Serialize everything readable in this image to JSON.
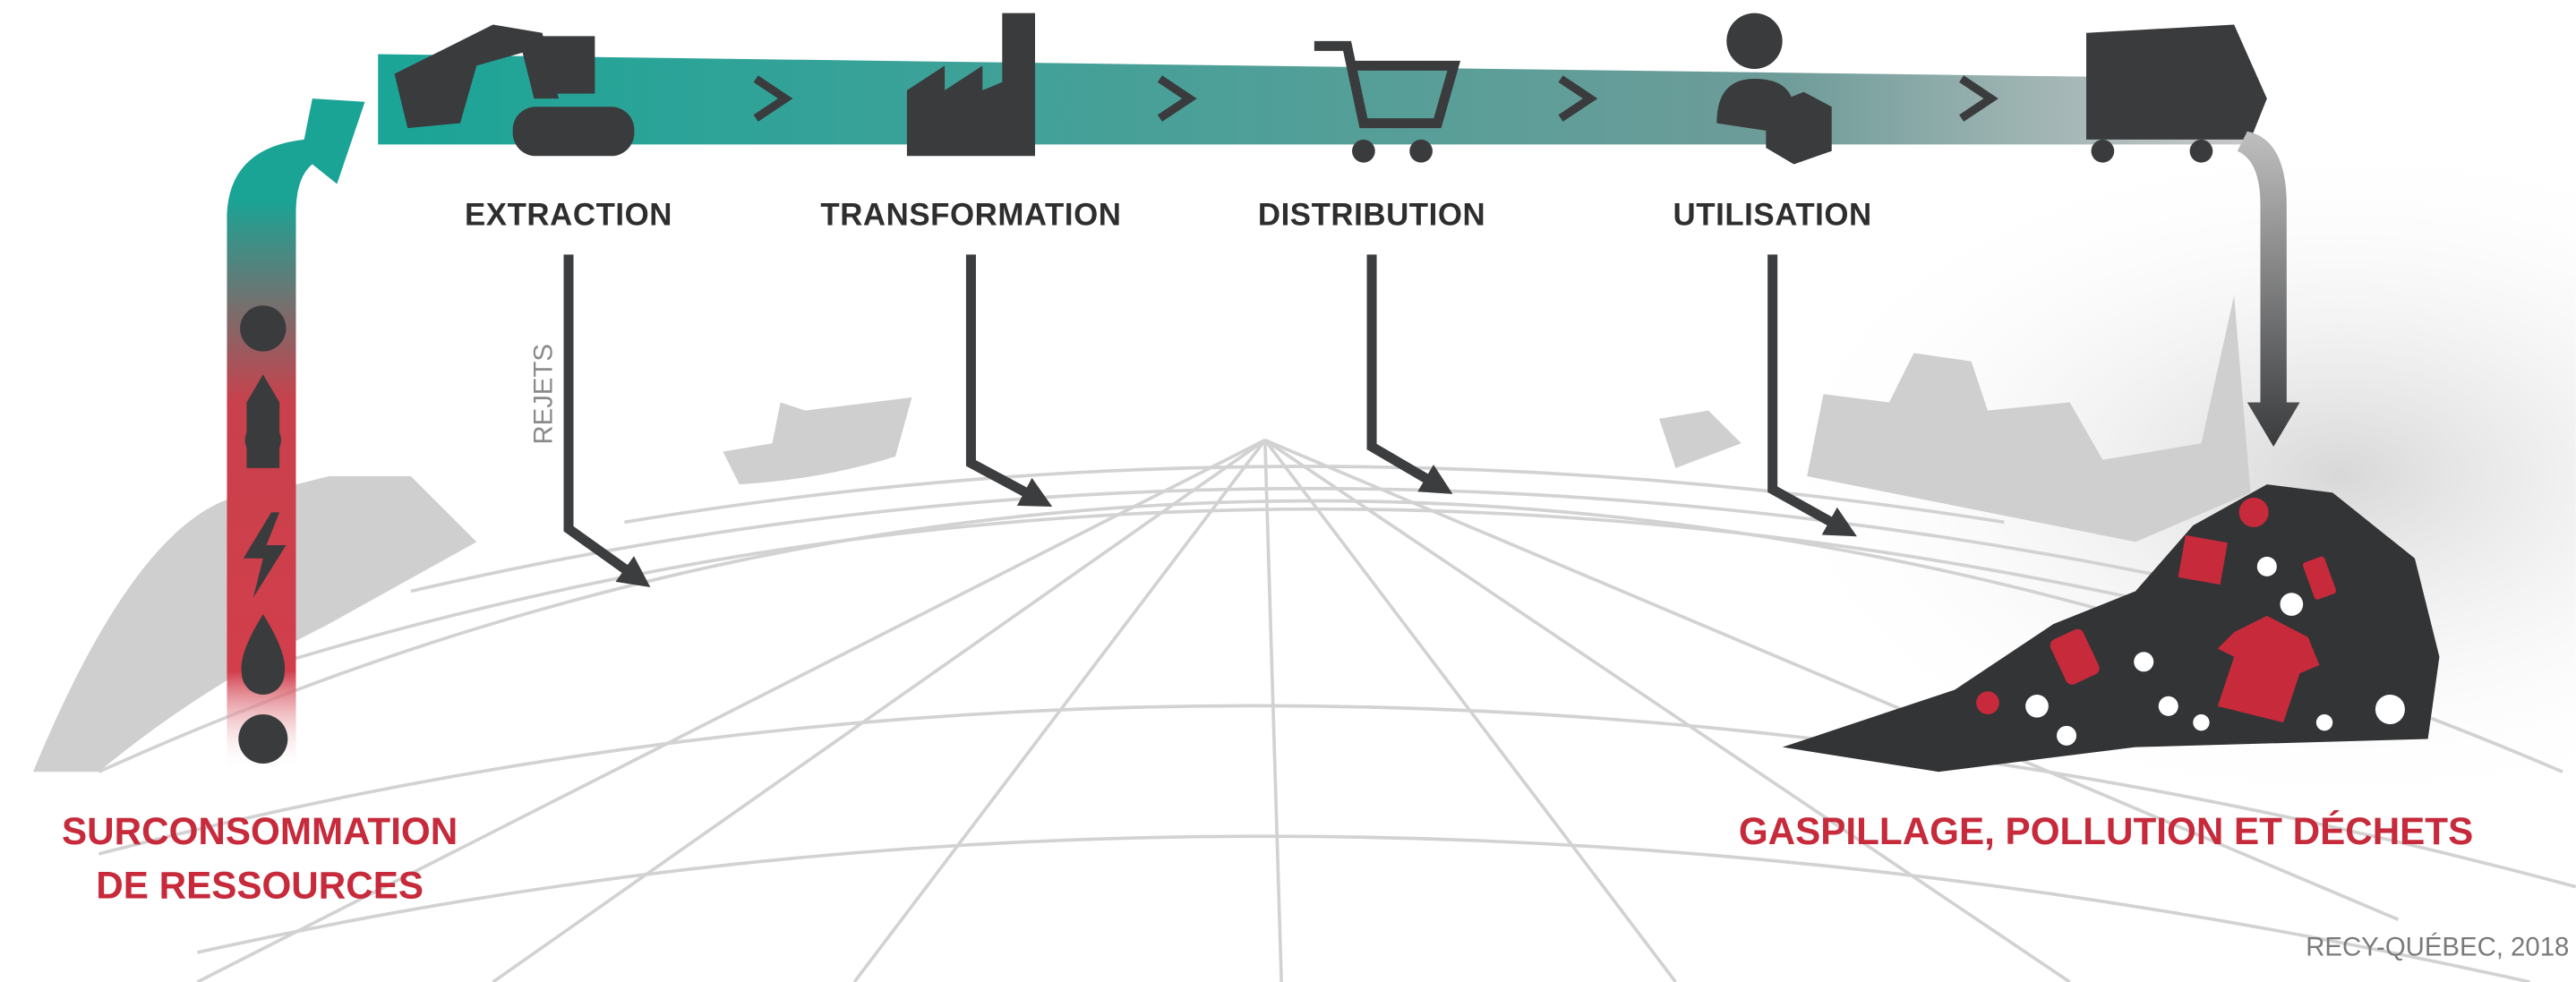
{
  "stages": [
    {
      "label": "EXTRACTION"
    },
    {
      "label": "TRANSFORMATION"
    },
    {
      "label": "DISTRIBUTION"
    },
    {
      "label": "UTILISATION"
    }
  ],
  "side_label": "REJETS",
  "input": {
    "lines": [
      "SURCONSOMMATION",
      "DE RESSOURCES"
    ]
  },
  "output": "GASPILLAGE, POLLUTION ET DÉCHETS",
  "source": "RECY-QUÉBEC, 2018"
}
